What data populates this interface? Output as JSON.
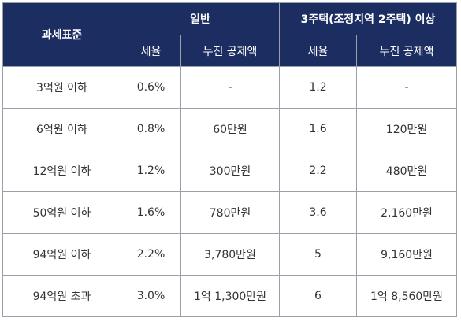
{
  "table": {
    "header": {
      "standard": "과세표준",
      "general": "일반",
      "multi": "3주택(조정지역 2주택) 이상",
      "rate": "세율",
      "deduction": "누진 공제액"
    },
    "rows": [
      {
        "standard": "3억원 이하",
        "gen_rate": "0.6%",
        "gen_ded": "-",
        "multi_rate": "1.2",
        "multi_ded": "-"
      },
      {
        "standard": "6억원 이하",
        "gen_rate": "0.8%",
        "gen_ded": "60만원",
        "multi_rate": "1.6",
        "multi_ded": "120만원"
      },
      {
        "standard": "12억원 이하",
        "gen_rate": "1.2%",
        "gen_ded": "300만원",
        "multi_rate": "2.2",
        "multi_ded": "480만원"
      },
      {
        "standard": "50억원 이하",
        "gen_rate": "1.6%",
        "gen_ded": "780만원",
        "multi_rate": "3.6",
        "multi_ded": "2,160만원"
      },
      {
        "standard": "94억원 이하",
        "gen_rate": "2.2%",
        "gen_ded": "3,780만원",
        "multi_rate": "5",
        "multi_ded": "9,160만원"
      },
      {
        "standard": "94억원 초과",
        "gen_rate": "3.0%",
        "gen_ded": "1억 1,300만원",
        "multi_rate": "6",
        "multi_ded": "1억 8,560만원"
      }
    ]
  }
}
